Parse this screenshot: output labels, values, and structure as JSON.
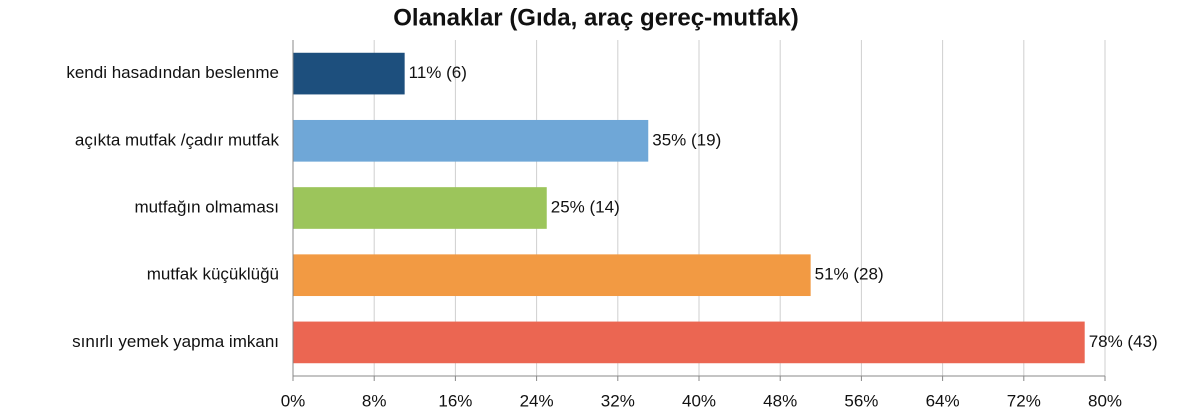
{
  "chart_data": {
    "type": "bar",
    "orientation": "horizontal",
    "title": "Olanaklar (Gıda, araç gereç-mutfak)",
    "categories": [
      "kendi hasadından beslenme",
      "açıkta mutfak /çadır mutfak",
      "mutfağın olmaması",
      "mutfak küçüklüğü",
      "sınırlı yemek yapma imkanı"
    ],
    "values": [
      11,
      35,
      25,
      51,
      78
    ],
    "value_labels": [
      "11% (6)",
      "35% (19)",
      "25% (14)",
      "51% (28)",
      "78% (43)"
    ],
    "colors": [
      "#1d4f7d",
      "#6fa7d7",
      "#9cc55b",
      "#f29a43",
      "#eb6652"
    ],
    "xlim": [
      0,
      80
    ],
    "xticks": [
      {
        "value": 0,
        "label": "0%"
      },
      {
        "value": 8,
        "label": "8%"
      },
      {
        "value": 16,
        "label": "16%"
      },
      {
        "value": 24,
        "label": "24%"
      },
      {
        "value": 32,
        "label": "32%"
      },
      {
        "value": 40,
        "label": "40%"
      },
      {
        "value": 48,
        "label": "48%"
      },
      {
        "value": 56,
        "label": "56%"
      },
      {
        "value": 64,
        "label": "64%"
      },
      {
        "value": 72,
        "label": "72%"
      },
      {
        "value": 80,
        "label": "80%"
      }
    ],
    "grid": true
  }
}
